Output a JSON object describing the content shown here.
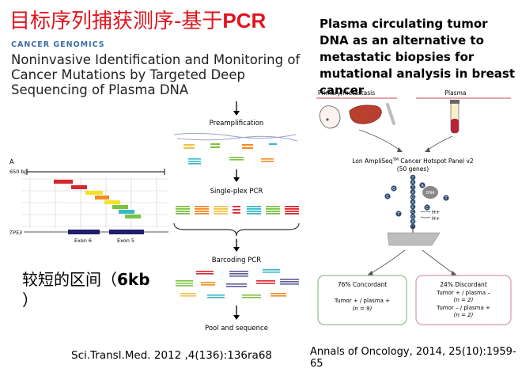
{
  "slide": {
    "title_cn": "目标序列捕获测序-基于",
    "title_pcr": "PCR",
    "region_note_text": "较短的区间（",
    "region_note_bold": "6kb",
    "region_note_close": "）"
  },
  "left_paper": {
    "journal_tag": "CANCER GENOMICS",
    "title": "Noninvasive Identification and Monitoring of Cancer Mutations by Targeted Deep Sequencing of Plasma DNA",
    "citation": "Sci.Transl.Med. 2012 ,4(136):136ra68",
    "panel_a": {
      "panel_label": "A",
      "scale_label": "650 bp",
      "gene_label": "TP53",
      "exon_labels": [
        "Exon 6",
        "Exon 5"
      ],
      "colors": {
        "red": "#d9262b",
        "orange": "#f08a24",
        "yellow": "#f2e22a",
        "green": "#7cc242",
        "cyan": "#37b8c8",
        "exon": "#1f1f6e"
      }
    },
    "workflow": {
      "steps": [
        "Preamplification",
        "Single-plex PCR",
        "Barcoding PCR",
        "Pool and sequence"
      ]
    }
  },
  "right_paper": {
    "title": "Plasma circulating tumor DNA as an alternative to metastatic biopsies for mutational analysis in breast cancer",
    "citation": "Annals of Oncology, 2014, 25(10):1959-65",
    "diagram": {
      "primary_label": "Primary/metastasis",
      "plasma_label": "Plasma",
      "panel_name": "Lon AmpliSeq",
      "panel_tm": "TM",
      "panel_rest": " Cancer Hotspot Panel v2",
      "panel_genes": "(50 genes)",
      "bases": [
        "T",
        "A",
        "T",
        "A",
        "G",
        "A",
        "C",
        "C",
        "G",
        "A",
        "T"
      ],
      "side_bases": [
        "G",
        "C",
        "T",
        "A",
        "T",
        "C"
      ],
      "chip_label": "DNA",
      "ion_labels": [
        "H+",
        "H+"
      ],
      "concordant": {
        "header": "76% Concordant",
        "line1": "Tumor + / plasma +",
        "line2": "(n = 9)"
      },
      "discordant": {
        "header": "24% Discordant",
        "line1": "Tumor + / plasma –",
        "line2": "(n = 2)",
        "line3": "Tumor – / plasma +",
        "line4": "(n = 2)"
      },
      "colors": {
        "concordant_border": "#8fbf8f",
        "discordant_border": "#d99aa3",
        "base_circle": "#2b4a70"
      }
    }
  }
}
